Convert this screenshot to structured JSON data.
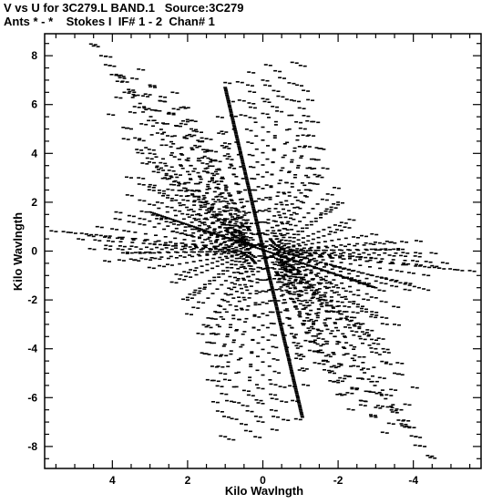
{
  "header": {
    "line1": "V vs U for 3C279.L BAND.1   Source:3C279",
    "line2": "Ants * - *    Stokes I  IF# 1 - 2  Chan# 1"
  },
  "chart_data": {
    "type": "scatter",
    "title": "V vs U for 3C279.L BAND.1   Source:3C279",
    "subtitle": "Ants * - *    Stokes I  IF# 1 - 2  Chan# 1",
    "xlabel": "Kilo Wavlngth",
    "ylabel": "Kilo Wavlngth",
    "xlim": [
      5.8,
      -5.8
    ],
    "ylim": [
      -8.9,
      8.9
    ],
    "x_ticks": [
      4,
      2,
      0,
      -2,
      -4
    ],
    "x_tick_labels": [
      "4",
      "2",
      "0",
      "-2",
      "-4"
    ],
    "y_ticks": [
      8,
      6,
      4,
      2,
      0,
      -2,
      -4,
      -6,
      -8
    ],
    "y_tick_labels": [
      "8",
      "6",
      "4",
      "2",
      "0",
      "-2",
      "-4",
      "-6",
      "-8"
    ],
    "grid": false,
    "marker_color": "#000000",
    "series": [
      {
        "tracks": [
          {
            "from": [
              4.45,
              8.45
            ],
            "to": [
              1.0,
              0.95
            ]
          },
          {
            "from": [
              4.05,
              7.95
            ],
            "to": [
              0.95,
              0.85
            ]
          },
          {
            "from": [
              3.9,
              7.2
            ],
            "to": [
              0.9,
              0.75
            ]
          },
          {
            "from": [
              3.35,
              7.05
            ],
            "to": [
              0.8,
              0.65
            ]
          },
          {
            "from": [
              3.0,
              6.4
            ],
            "to": [
              0.7,
              0.55
            ]
          },
          {
            "from": [
              2.6,
              6.3
            ],
            "to": [
              0.6,
              0.45
            ]
          },
          {
            "from": [
              2.25,
              5.8
            ],
            "to": [
              0.5,
              0.4
            ]
          },
          {
            "from": [
              2.0,
              5.3
            ],
            "to": [
              0.42,
              0.35
            ]
          },
          {
            "from": [
              1.5,
              4.6
            ],
            "to": [
              0.35,
              0.3
            ]
          },
          {
            "from": [
              1.05,
              4.8
            ],
            "to": [
              0.28,
              0.25
            ]
          },
          {
            "from": [
              0.9,
              4.2
            ],
            "to": [
              0.22,
              0.2
            ]
          },
          {
            "from": [
              0.55,
              6.9
            ],
            "to": [
              0.12,
              0.25
            ]
          },
          {
            "from": [
              0.25,
              7.3
            ],
            "to": [
              0.05,
              0.25
            ]
          },
          {
            "from": [
              -0.2,
              7.6
            ],
            "to": [
              -0.05,
              0.2
            ]
          },
          {
            "from": [
              -0.45,
              7.35
            ],
            "to": [
              -0.1,
              0.2
            ]
          },
          {
            "from": [
              -0.9,
              7.7
            ],
            "to": [
              -0.2,
              0.25
            ]
          },
          {
            "from": [
              -1.2,
              6.55
            ],
            "to": [
              -0.25,
              0.2
            ]
          },
          {
            "from": [
              -1.3,
              5.3
            ],
            "to": [
              -0.3,
              0.15
            ]
          },
          {
            "from": [
              -1.55,
              4.2
            ],
            "to": [
              -0.35,
              0.1
            ]
          },
          {
            "from": [
              -1.5,
              3.1
            ],
            "to": [
              -0.35,
              0.05
            ]
          },
          {
            "from": [
              -2.0,
              1.9
            ],
            "to": [
              -0.4,
              0.05
            ]
          },
          {
            "from": [
              -2.3,
              0.95
            ],
            "to": [
              -0.45,
              0.05
            ]
          },
          {
            "from": [
              5.5,
              0.8
            ],
            "to": [
              0.9,
              0.15
            ]
          },
          {
            "from": [
              4.5,
              0.6
            ],
            "to": [
              0.8,
              0.1
            ]
          },
          {
            "from": [
              4.05,
              0.2
            ],
            "to": [
              0.7,
              0.05
            ]
          },
          {
            "from": [
              3.6,
              -0.1
            ],
            "to": [
              0.6,
              0.0
            ]
          },
          {
            "from": [
              3.3,
              -0.4
            ],
            "to": [
              0.55,
              -0.05
            ]
          },
          {
            "from": [
              2.9,
              -0.7
            ],
            "to": [
              0.5,
              -0.1
            ]
          },
          {
            "from": [
              2.3,
              -1.3
            ],
            "to": [
              0.45,
              -0.15
            ]
          },
          {
            "from": [
              2.0,
              -2.0
            ],
            "to": [
              0.4,
              -0.2
            ]
          },
          {
            "from": [
              1.9,
              -2.6
            ],
            "to": [
              0.35,
              -0.25
            ]
          },
          {
            "from": [
              1.6,
              -3.4
            ],
            "to": [
              0.3,
              -0.3
            ]
          },
          {
            "from": [
              1.5,
              -4.2
            ],
            "to": [
              0.28,
              -0.35
            ]
          },
          {
            "from": [
              1.35,
              -5.3
            ],
            "to": [
              0.25,
              -0.4
            ]
          },
          {
            "from": [
              1.2,
              -6.2
            ],
            "to": [
              0.22,
              -0.45
            ]
          },
          {
            "from": [
              1.0,
              -7.6
            ],
            "to": [
              0.2,
              -0.5
            ]
          },
          {
            "from": [
              0.45,
              -7.1
            ],
            "to": [
              0.1,
              -0.4
            ]
          },
          {
            "from": [
              0.0,
              -7.0
            ],
            "to": [
              0.0,
              -0.3
            ]
          },
          {
            "from": [
              -0.4,
              -6.8
            ],
            "to": [
              -0.1,
              -0.3
            ]
          },
          {
            "from": [
              -1.0,
              -6.9
            ],
            "to": [
              -0.2,
              -0.25
            ]
          },
          {
            "from": [
              -1.2,
              -5.5
            ],
            "to": [
              -0.25,
              -0.2
            ]
          },
          {
            "from": [
              -1.5,
              -4.6
            ],
            "to": [
              -0.3,
              -0.15
            ]
          },
          {
            "from": [
              -1.6,
              -3.6
            ],
            "to": [
              -0.35,
              -0.1
            ]
          },
          {
            "from": [
              -2.0,
              -2.5
            ],
            "to": [
              -0.4,
              -0.1
            ]
          },
          {
            "from": [
              -2.0,
              -1.5
            ],
            "to": [
              -0.4,
              -0.05
            ]
          },
          {
            "from": [
              -2.4,
              -0.8
            ],
            "to": [
              -0.45,
              -0.05
            ]
          },
          {
            "from": [
              -3.0,
              -0.3
            ],
            "to": [
              -0.6,
              0.0
            ]
          },
          {
            "from": [
              -3.6,
              0.05
            ],
            "to": [
              -0.7,
              0.02
            ]
          },
          {
            "from": [
              -4.2,
              0.4
            ],
            "to": [
              -0.8,
              0.05
            ]
          },
          {
            "from": [
              -4.6,
              -0.1
            ],
            "to": [
              -0.9,
              -0.05
            ]
          },
          {
            "from": [
              -5.3,
              -0.8
            ],
            "to": [
              -1.0,
              -0.15
            ]
          },
          {
            "from": [
              -4.9,
              -0.5
            ],
            "to": [
              -1.0,
              -0.1
            ]
          },
          {
            "from": [
              -4.4,
              -1.0
            ],
            "to": [
              -0.9,
              -0.2
            ]
          },
          {
            "from": [
              -3.9,
              -1.6
            ],
            "to": [
              -0.8,
              -0.3
            ]
          },
          {
            "from": [
              -3.6,
              -2.3
            ],
            "to": [
              -0.7,
              -0.4
            ]
          },
          {
            "from": [
              -3.3,
              -3.0
            ],
            "to": [
              -0.6,
              -0.5
            ]
          },
          {
            "from": [
              -3.2,
              -3.6
            ],
            "to": [
              -0.55,
              -0.55
            ]
          },
          {
            "from": [
              -3.7,
              -4.6
            ],
            "to": [
              -0.6,
              -0.7
            ]
          },
          {
            "from": [
              -4.1,
              -5.6
            ],
            "to": [
              -0.65,
              -0.85
            ]
          },
          {
            "from": [
              -3.9,
              -6.3
            ],
            "to": [
              -0.6,
              -0.95
            ]
          },
          {
            "from": [
              -3.8,
              -7.1
            ],
            "to": [
              -0.6,
              -1.0
            ]
          },
          {
            "from": [
              -3.3,
              -7.45
            ],
            "to": [
              -0.55,
              -1.1
            ]
          },
          {
            "from": [
              -4.3,
              -8.0
            ],
            "to": [
              -0.7,
              -1.2
            ]
          },
          {
            "from": [
              -4.5,
              -8.4
            ],
            "to": [
              -0.7,
              -1.3
            ]
          },
          {
            "from": [
              -3.0,
              -6.8
            ],
            "to": [
              -0.5,
              -1.0
            ]
          },
          {
            "from": [
              -2.4,
              -6.5
            ],
            "to": [
              -0.45,
              -1.0
            ]
          },
          {
            "from": [
              -2.1,
              -5.9
            ],
            "to": [
              -0.4,
              -0.95
            ]
          },
          {
            "from": [
              -1.9,
              -5.0
            ],
            "to": [
              -0.35,
              -0.85
            ]
          },
          {
            "from": [
              -3.0,
              -4.0
            ],
            "to": [
              -0.5,
              -0.6
            ]
          },
          {
            "from": [
              -2.6,
              -3.0
            ],
            "to": [
              -0.45,
              -0.45
            ]
          },
          {
            "from": [
              -2.8,
              -2.0
            ],
            "to": [
              -0.5,
              -0.35
            ]
          },
          {
            "from": [
              2.7,
              1.3
            ],
            "to": [
              0.45,
              0.2
            ]
          },
          {
            "from": [
              3.1,
              1.6
            ],
            "to": [
              0.5,
              0.25
            ]
          },
          {
            "from": [
              3.8,
              1.3
            ],
            "to": [
              0.6,
              0.2
            ]
          },
          {
            "from": [
              2.4,
              2.5
            ],
            "to": [
              0.4,
              0.35
            ]
          },
          {
            "from": [
              2.7,
              3.4
            ],
            "to": [
              0.45,
              0.5
            ]
          },
          {
            "from": [
              3.2,
              4.0
            ],
            "to": [
              0.5,
              0.6
            ]
          },
          {
            "from": [
              3.5,
              5.0
            ],
            "to": [
              0.55,
              0.75
            ]
          },
          {
            "from": [
              3.5,
              3.0
            ],
            "to": [
              0.55,
              0.45
            ]
          },
          {
            "from": [
              2.9,
              2.6
            ],
            "to": [
              0.5,
              0.4
            ]
          }
        ],
        "dense_lines": [
          {
            "from": [
              1.0,
              6.7
            ],
            "to": [
              -1.05,
              -6.8
            ],
            "points": 220
          },
          {
            "from": [
              3.0,
              1.6
            ],
            "to": [
              -3.0,
              -1.5
            ],
            "points": 110
          },
          {
            "from": [
              1.8,
              0.9
            ],
            "to": [
              -4.4,
              -1.6
            ],
            "points": 50
          }
        ]
      }
    ]
  }
}
